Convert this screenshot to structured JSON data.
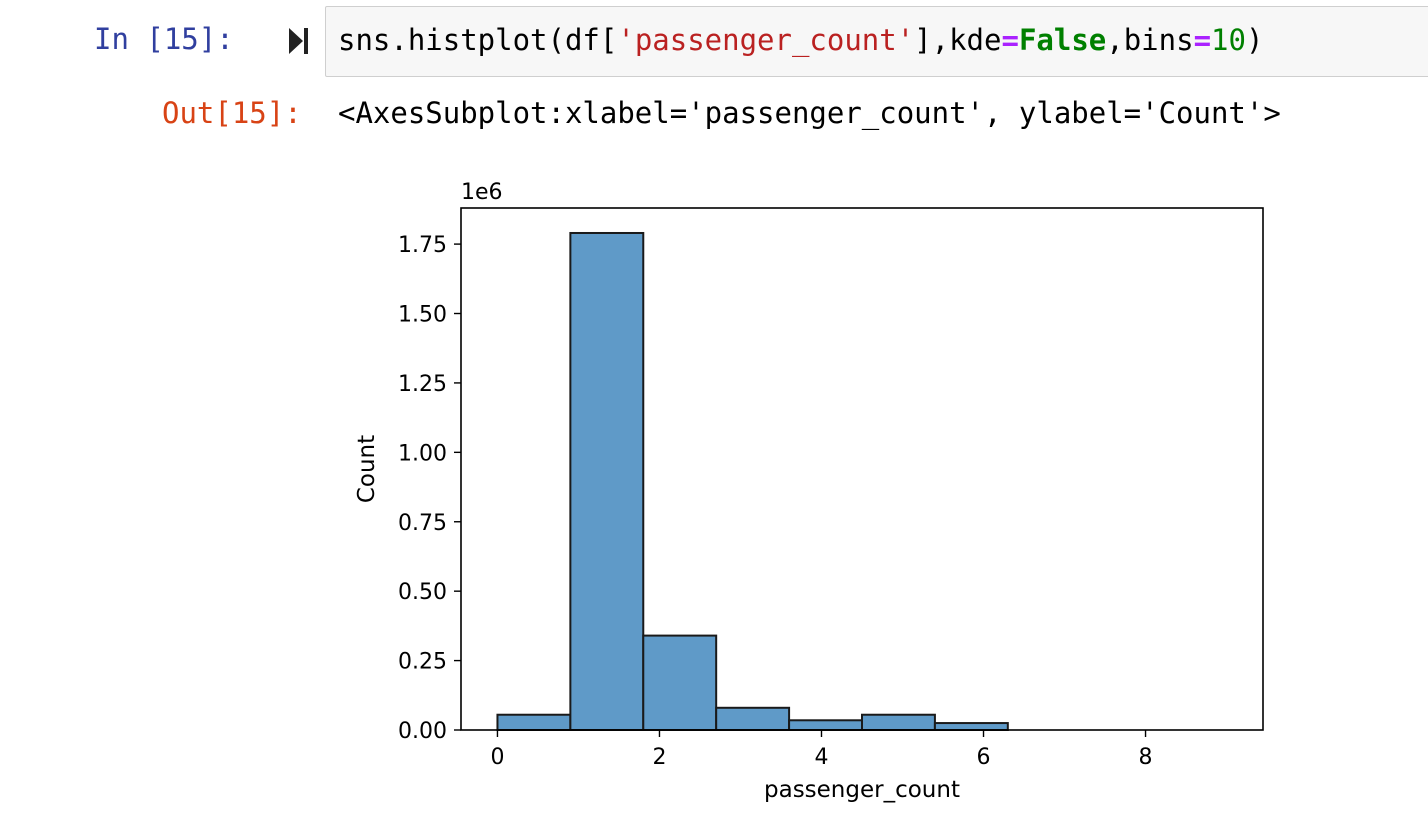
{
  "input_cell": {
    "prompt": "In [15]:",
    "code_tokens": [
      {
        "text": "sns.histplot(df[",
        "kind": "plain"
      },
      {
        "text": "'passenger_count'",
        "kind": "str"
      },
      {
        "text": "],kde",
        "kind": "plain"
      },
      {
        "text": "=",
        "kind": "op"
      },
      {
        "text": "False",
        "kind": "kw"
      },
      {
        "text": ",bins",
        "kind": "plain"
      },
      {
        "text": "=",
        "kind": "op"
      },
      {
        "text": "10",
        "kind": "num"
      },
      {
        "text": ")",
        "kind": "plain"
      }
    ],
    "run_icon": "run-cell-icon"
  },
  "output_cell": {
    "prompt": "Out[15]:",
    "text": "<AxesSubplot:xlabel='passenger_count', ylabel='Count'>"
  },
  "colors": {
    "bar_fill": "#5f9ac8",
    "bar_edge": "#1a1a1a",
    "prompt_in": "#303f9f",
    "prompt_out": "#d84315"
  },
  "chart_data": {
    "type": "bar",
    "subtype": "histogram",
    "xlabel": "passenger_count",
    "ylabel": "Count",
    "y_offset_label": "1e6",
    "bin_edges": [
      0,
      0.9,
      1.8,
      2.7,
      3.6,
      4.5,
      5.4,
      6.3,
      7.2,
      8.1,
      9.0
    ],
    "values": [
      0.055,
      1.79,
      0.34,
      0.08,
      0.035,
      0.055,
      0.025,
      0.0,
      0.0,
      0.0
    ],
    "xlim": [
      -0.45,
      9.45
    ],
    "ylim": [
      0,
      1.88
    ],
    "xticks": [
      0,
      2,
      4,
      6,
      8
    ],
    "xtick_labels": [
      "0",
      "2",
      "4",
      "6",
      "8"
    ],
    "yticks": [
      0,
      0.25,
      0.5,
      0.75,
      1.0,
      1.25,
      1.5,
      1.75
    ],
    "ytick_labels": [
      "0.00",
      "0.25",
      "0.50",
      "0.75",
      "1.00",
      "1.25",
      "1.50",
      "1.75"
    ],
    "grid": false,
    "legend": "none"
  }
}
